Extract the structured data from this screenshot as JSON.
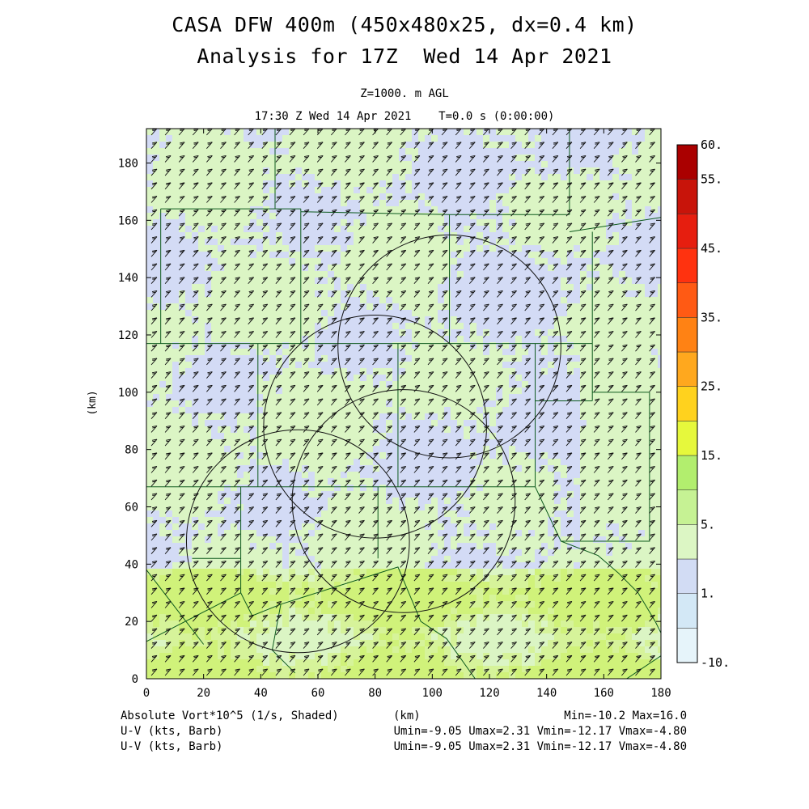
{
  "header": {
    "title_line1": "CASA DFW 400m (450x480x25, dx=0.4 km)",
    "title_line2": "Analysis for 17Z  Wed 14 Apr 2021",
    "level": "Z=1000. m AGL",
    "time": "17:30 Z Wed 14 Apr 2021    T=0.0 s (0:00:00)"
  },
  "chart_data": {
    "type": "heatmap",
    "xlabel": "(km)",
    "ylabel": "(km)",
    "xlim": [
      0,
      180
    ],
    "ylim": [
      0,
      192
    ],
    "x_ticks": [
      "0",
      "20",
      "40",
      "60",
      "80",
      "100",
      "120",
      "140",
      "160",
      "180"
    ],
    "y_ticks": [
      "0",
      "20",
      "40",
      "60",
      "80",
      "100",
      "120",
      "140",
      "160",
      "180"
    ],
    "field": "Absolute Vort*10^5 (1/s, Shaded)",
    "vectors": "U-V (kts, Barb)",
    "colorbar": {
      "labels": [
        "-10.",
        "1.",
        "5.",
        "15.",
        "25.",
        "35.",
        "45.",
        "55.",
        "60."
      ],
      "colors": [
        "#e6f4fa",
        "#d3e8f6",
        "#d2dcf4",
        "#dcf6c4",
        "#c6f294",
        "#b2ee6e",
        "#e6f83c",
        "#ffd21e",
        "#ffa81e",
        "#ff8214",
        "#ff5a14",
        "#ff320f",
        "#e61e0f",
        "#c8140a",
        "#aa0000"
      ]
    },
    "range_rings_km": [
      {
        "x": 106,
        "y": 116,
        "r": 39
      },
      {
        "x": 80,
        "y": 88,
        "r": 39
      },
      {
        "x": 90,
        "y": 62,
        "r": 39
      },
      {
        "x": 53,
        "y": 48,
        "r": 39
      }
    ],
    "field_colors": {
      "green": "#dbf5c4",
      "blue": "#d3dbf5",
      "yellow_green": "#d0f27a"
    },
    "stats": {
      "min_max": "Min=-10.2 Max=16.0",
      "uv_line": "Umin=-9.05 Umax=2.31 Vmin=-12.17 Vmax=-4.80"
    }
  },
  "footer": {
    "field_label": "Absolute Vort*10^5 (1/s, Shaded)",
    "xaxis_label": "(km)",
    "vector_label_1": "U-V (kts, Barb)",
    "vector_label_2": "U-V (kts, Barb)"
  }
}
